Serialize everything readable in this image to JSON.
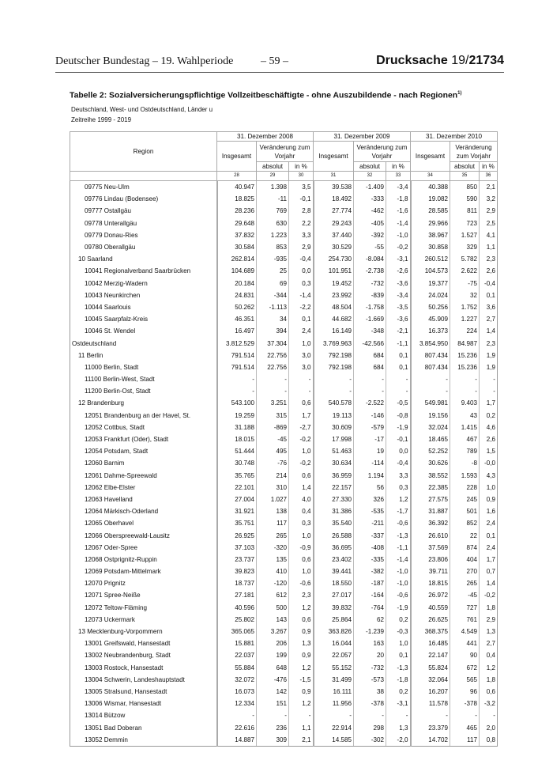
{
  "header": {
    "left": "Deutscher Bundestag – 19. Wahlperiode",
    "page": "– 59 –",
    "doc_prefix": "Drucksache ",
    "doc_number": "19/",
    "doc_number_bold": "21734"
  },
  "title": "Tabelle 2: Sozialversicherungspflichtige Vollzeitbeschäftigte - ohne Auszubildende - nach Regionen",
  "title_footnote": "1)",
  "subtitle1": "Deutschland, West- und Ostdeutschland, Länder u",
  "subtitle2": "Zeitreihe 1999 - 2019",
  "table": {
    "region_header": "Region",
    "years": [
      "31. Dezember 2008",
      "31. Dezember 2009",
      "31. Dezember 2010"
    ],
    "insgesamt": "Insgesamt",
    "veraenderung": "Veränderung zum Vorjahr",
    "absolut": "absolut",
    "in_pct": "in %",
    "col_numbers": [
      "28",
      "29",
      "30",
      "31",
      "32",
      "33",
      "34",
      "35",
      "36"
    ],
    "rows": [
      {
        "region": "09775 Neu-Ulm",
        "indent": 2,
        "v": [
          "40.947",
          "1.398",
          "3,5",
          "39.538",
          "-1.409",
          "-3,4",
          "40.388",
          "850",
          "2,1"
        ]
      },
      {
        "region": "09776 Lindau (Bodensee)",
        "indent": 2,
        "v": [
          "18.825",
          "-11",
          "-0,1",
          "18.492",
          "-333",
          "-1,8",
          "19.082",
          "590",
          "3,2"
        ]
      },
      {
        "region": "09777 Ostallgäu",
        "indent": 2,
        "v": [
          "28.236",
          "769",
          "2,8",
          "27.774",
          "-462",
          "-1,6",
          "28.585",
          "811",
          "2,9"
        ]
      },
      {
        "region": "09778 Unterallgäu",
        "indent": 2,
        "v": [
          "29.648",
          "630",
          "2,2",
          "29.243",
          "-405",
          "-1,4",
          "29.966",
          "723",
          "2,5"
        ]
      },
      {
        "region": "09779 Donau-Ries",
        "indent": 2,
        "v": [
          "37.832",
          "1.223",
          "3,3",
          "37.440",
          "-392",
          "-1,0",
          "38.967",
          "1.527",
          "4,1"
        ]
      },
      {
        "region": "09780 Oberallgäu",
        "indent": 2,
        "v": [
          "30.584",
          "853",
          "2,9",
          "30.529",
          "-55",
          "-0,2",
          "30.858",
          "329",
          "1,1"
        ]
      },
      {
        "region": "10 Saarland",
        "indent": 1,
        "v": [
          "262.814",
          "-935",
          "-0,4",
          "254.730",
          "-8.084",
          "-3,1",
          "260.512",
          "5.782",
          "2,3"
        ]
      },
      {
        "region": "10041 Regionalverband Saarbrücken",
        "indent": 2,
        "v": [
          "104.689",
          "25",
          "0,0",
          "101.951",
          "-2.738",
          "-2,6",
          "104.573",
          "2.622",
          "2,6"
        ]
      },
      {
        "region": "10042 Merzig-Wadern",
        "indent": 2,
        "v": [
          "20.184",
          "69",
          "0,3",
          "19.452",
          "-732",
          "-3,6",
          "19.377",
          "-75",
          "-0,4"
        ]
      },
      {
        "region": "10043 Neunkirchen",
        "indent": 2,
        "v": [
          "24.831",
          "-344",
          "-1,4",
          "23.992",
          "-839",
          "-3,4",
          "24.024",
          "32",
          "0,1"
        ]
      },
      {
        "region": "10044 Saarlouis",
        "indent": 2,
        "v": [
          "50.262",
          "-1.113",
          "-2,2",
          "48.504",
          "-1.758",
          "-3,5",
          "50.256",
          "1.752",
          "3,6"
        ]
      },
      {
        "region": "10045 Saarpfalz-Kreis",
        "indent": 2,
        "v": [
          "46.351",
          "34",
          "0,1",
          "44.682",
          "-1.669",
          "-3,6",
          "45.909",
          "1.227",
          "2,7"
        ]
      },
      {
        "region": "10046 St. Wendel",
        "indent": 2,
        "v": [
          "16.497",
          "394",
          "2,4",
          "16.149",
          "-348",
          "-2,1",
          "16.373",
          "224",
          "1,4"
        ]
      },
      {
        "region": "Ostdeutschland",
        "indent": 0,
        "v": [
          "3.812.529",
          "37.304",
          "1,0",
          "3.769.963",
          "-42.566",
          "-1,1",
          "3.854.950",
          "84.987",
          "2,3"
        ]
      },
      {
        "region": "11 Berlin",
        "indent": 1,
        "v": [
          "791.514",
          "22.756",
          "3,0",
          "792.198",
          "684",
          "0,1",
          "807.434",
          "15.236",
          "1,9"
        ]
      },
      {
        "region": "11000 Berlin, Stadt",
        "indent": 2,
        "v": [
          "791.514",
          "22.756",
          "3,0",
          "792.198",
          "684",
          "0,1",
          "807.434",
          "15.236",
          "1,9"
        ]
      },
      {
        "region": "11100 Berlin-West, Stadt",
        "indent": 2,
        "v": [
          "-",
          "-",
          "-",
          "-",
          "-",
          "-",
          "-",
          "-",
          "-"
        ]
      },
      {
        "region": "11200 Berlin-Ost, Stadt",
        "indent": 2,
        "v": [
          "-",
          "-",
          "-",
          "-",
          "-",
          "-",
          "-",
          "-",
          "-"
        ]
      },
      {
        "region": "12 Brandenburg",
        "indent": 1,
        "v": [
          "543.100",
          "3.251",
          "0,6",
          "540.578",
          "-2.522",
          "-0,5",
          "549.981",
          "9.403",
          "1,7"
        ]
      },
      {
        "region": "12051 Brandenburg an der Havel, St.",
        "indent": 2,
        "v": [
          "19.259",
          "315",
          "1,7",
          "19.113",
          "-146",
          "-0,8",
          "19.156",
          "43",
          "0,2"
        ]
      },
      {
        "region": "12052 Cottbus, Stadt",
        "indent": 2,
        "v": [
          "31.188",
          "-869",
          "-2,7",
          "30.609",
          "-579",
          "-1,9",
          "32.024",
          "1.415",
          "4,6"
        ]
      },
      {
        "region": "12053 Frankfurt (Oder), Stadt",
        "indent": 2,
        "v": [
          "18.015",
          "-45",
          "-0,2",
          "17.998",
          "-17",
          "-0,1",
          "18.465",
          "467",
          "2,6"
        ]
      },
      {
        "region": "12054 Potsdam, Stadt",
        "indent": 2,
        "v": [
          "51.444",
          "495",
          "1,0",
          "51.463",
          "19",
          "0,0",
          "52.252",
          "789",
          "1,5"
        ]
      },
      {
        "region": "12060 Barnim",
        "indent": 2,
        "v": [
          "30.748",
          "-76",
          "-0,2",
          "30.634",
          "-114",
          "-0,4",
          "30.626",
          "-8",
          "-0,0"
        ]
      },
      {
        "region": "12061 Dahme-Spreewald",
        "indent": 2,
        "v": [
          "35.765",
          "214",
          "0,6",
          "36.959",
          "1.194",
          "3,3",
          "38.552",
          "1.593",
          "4,3"
        ]
      },
      {
        "region": "12062 Elbe-Elster",
        "indent": 2,
        "v": [
          "22.101",
          "310",
          "1,4",
          "22.157",
          "56",
          "0,3",
          "22.385",
          "228",
          "1,0"
        ]
      },
      {
        "region": "12063 Havelland",
        "indent": 2,
        "v": [
          "27.004",
          "1.027",
          "4,0",
          "27.330",
          "326",
          "1,2",
          "27.575",
          "245",
          "0,9"
        ]
      },
      {
        "region": "12064 Märkisch-Oderland",
        "indent": 2,
        "v": [
          "31.921",
          "138",
          "0,4",
          "31.386",
          "-535",
          "-1,7",
          "31.887",
          "501",
          "1,6"
        ]
      },
      {
        "region": "12065 Oberhavel",
        "indent": 2,
        "v": [
          "35.751",
          "117",
          "0,3",
          "35.540",
          "-211",
          "-0,6",
          "36.392",
          "852",
          "2,4"
        ]
      },
      {
        "region": "12066 Oberspreewald-Lausitz",
        "indent": 2,
        "v": [
          "26.925",
          "265",
          "1,0",
          "26.588",
          "-337",
          "-1,3",
          "26.610",
          "22",
          "0,1"
        ]
      },
      {
        "region": "12067 Oder-Spree",
        "indent": 2,
        "v": [
          "37.103",
          "-320",
          "-0,9",
          "36.695",
          "-408",
          "-1,1",
          "37.569",
          "874",
          "2,4"
        ]
      },
      {
        "region": "12068 Ostprignitz-Ruppin",
        "indent": 2,
        "v": [
          "23.737",
          "135",
          "0,6",
          "23.402",
          "-335",
          "-1,4",
          "23.806",
          "404",
          "1,7"
        ]
      },
      {
        "region": "12069 Potsdam-Mittelmark",
        "indent": 2,
        "v": [
          "39.823",
          "410",
          "1,0",
          "39.441",
          "-382",
          "-1,0",
          "39.711",
          "270",
          "0,7"
        ]
      },
      {
        "region": "12070 Prignitz",
        "indent": 2,
        "v": [
          "18.737",
          "-120",
          "-0,6",
          "18.550",
          "-187",
          "-1,0",
          "18.815",
          "265",
          "1,4"
        ]
      },
      {
        "region": "12071 Spree-Neiße",
        "indent": 2,
        "v": [
          "27.181",
          "612",
          "2,3",
          "27.017",
          "-164",
          "-0,6",
          "26.972",
          "-45",
          "-0,2"
        ]
      },
      {
        "region": "12072 Teltow-Fläming",
        "indent": 2,
        "v": [
          "40.596",
          "500",
          "1,2",
          "39.832",
          "-764",
          "-1,9",
          "40.559",
          "727",
          "1,8"
        ]
      },
      {
        "region": "12073 Uckermark",
        "indent": 2,
        "v": [
          "25.802",
          "143",
          "0,6",
          "25.864",
          "62",
          "0,2",
          "26.625",
          "761",
          "2,9"
        ]
      },
      {
        "region": "13 Mecklenburg-Vorpommern",
        "indent": 1,
        "v": [
          "365.065",
          "3.267",
          "0,9",
          "363.826",
          "-1.239",
          "-0,3",
          "368.375",
          "4.549",
          "1,3"
        ]
      },
      {
        "region": "13001 Greifswald, Hansestadt",
        "indent": 2,
        "v": [
          "15.881",
          "206",
          "1,3",
          "16.044",
          "163",
          "1,0",
          "16.485",
          "441",
          "2,7"
        ]
      },
      {
        "region": "13002 Neubrandenburg, Stadt",
        "indent": 2,
        "v": [
          "22.037",
          "199",
          "0,9",
          "22.057",
          "20",
          "0,1",
          "22.147",
          "90",
          "0,4"
        ]
      },
      {
        "region": "13003 Rostock, Hansestadt",
        "indent": 2,
        "v": [
          "55.884",
          "648",
          "1,2",
          "55.152",
          "-732",
          "-1,3",
          "55.824",
          "672",
          "1,2"
        ]
      },
      {
        "region": "13004 Schwerin, Landeshauptstadt",
        "indent": 2,
        "v": [
          "32.072",
          "-476",
          "-1,5",
          "31.499",
          "-573",
          "-1,8",
          "32.064",
          "565",
          "1,8"
        ]
      },
      {
        "region": "13005 Stralsund, Hansestadt",
        "indent": 2,
        "v": [
          "16.073",
          "142",
          "0,9",
          "16.111",
          "38",
          "0,2",
          "16.207",
          "96",
          "0,6"
        ]
      },
      {
        "region": "13006 Wismar, Hansestadt",
        "indent": 2,
        "v": [
          "12.334",
          "151",
          "1,2",
          "11.956",
          "-378",
          "-3,1",
          "11.578",
          "-378",
          "-3,2"
        ]
      },
      {
        "region": "13014 Bützow",
        "indent": 2,
        "v": [
          "-",
          "-",
          "-",
          "-",
          "-",
          "-",
          "-",
          "-",
          "-"
        ]
      },
      {
        "region": "13051 Bad Doberan",
        "indent": 2,
        "v": [
          "22.616",
          "236",
          "1,1",
          "22.914",
          "298",
          "1,3",
          "23.379",
          "465",
          "2,0"
        ]
      },
      {
        "region": "13052 Demmin",
        "indent": 2,
        "v": [
          "14.887",
          "309",
          "2,1",
          "14.585",
          "-302",
          "-2,0",
          "14.702",
          "117",
          "0,8"
        ]
      }
    ]
  }
}
